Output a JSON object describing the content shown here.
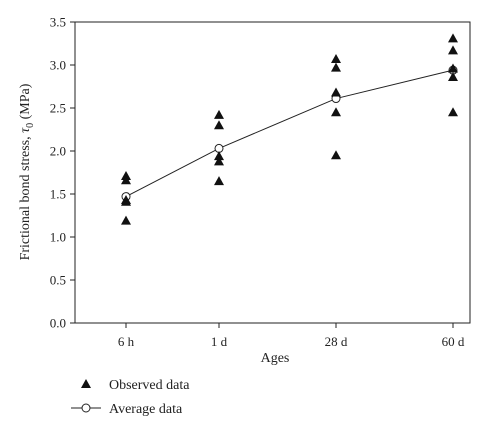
{
  "chart_data": {
    "type": "scatter",
    "categories": [
      "6 h",
      "1 d",
      "28 d",
      "60 d"
    ],
    "xlabel": "Ages",
    "ylabel_main": "Frictional bond stress, ",
    "ylabel_symbol": "τ",
    "ylabel_sub": "0",
    "ylabel_unit": " (MPa)",
    "ylim": [
      0.0,
      3.5
    ],
    "yticks": [
      "0.0",
      "0.5",
      "1.0",
      "1.5",
      "2.0",
      "2.5",
      "3.0",
      "3.5"
    ],
    "grid": false,
    "legend_position": "bottom-left",
    "series": [
      {
        "name": "Observed data",
        "marker": "filled-triangle",
        "points": [
          {
            "x": "6 h",
            "y": 1.71
          },
          {
            "x": "6 h",
            "y": 1.66
          },
          {
            "x": "6 h",
            "y": 1.43
          },
          {
            "x": "6 h",
            "y": 1.41
          },
          {
            "x": "6 h",
            "y": 1.19
          },
          {
            "x": "1 d",
            "y": 2.42
          },
          {
            "x": "1 d",
            "y": 2.3
          },
          {
            "x": "1 d",
            "y": 1.94
          },
          {
            "x": "1 d",
            "y": 1.88
          },
          {
            "x": "1 d",
            "y": 1.65
          },
          {
            "x": "28 d",
            "y": 3.07
          },
          {
            "x": "28 d",
            "y": 2.97
          },
          {
            "x": "28 d",
            "y": 2.68
          },
          {
            "x": "28 d",
            "y": 2.45
          },
          {
            "x": "28 d",
            "y": 1.95
          },
          {
            "x": "60 d",
            "y": 3.31
          },
          {
            "x": "60 d",
            "y": 3.17
          },
          {
            "x": "60 d",
            "y": 2.96
          },
          {
            "x": "60 d",
            "y": 2.86
          },
          {
            "x": "60 d",
            "y": 2.45
          }
        ]
      },
      {
        "name": "Average data",
        "marker": "open-circle-line",
        "values": [
          1.47,
          2.03,
          2.61,
          2.94
        ]
      }
    ]
  }
}
